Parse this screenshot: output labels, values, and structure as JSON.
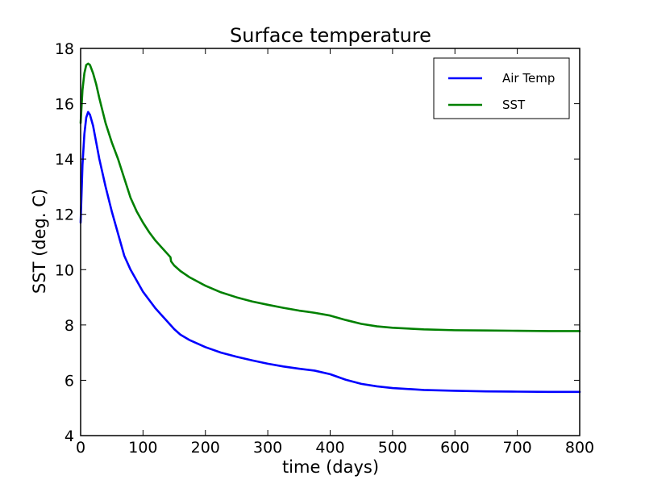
{
  "chart_data": {
    "type": "line",
    "title": "Surface temperature",
    "xlabel": "time (days)",
    "ylabel": "SST (deg. C)",
    "xlim": [
      0,
      800
    ],
    "ylim": [
      4,
      18
    ],
    "x_ticks": [
      0,
      100,
      200,
      300,
      400,
      500,
      600,
      700,
      800
    ],
    "y_ticks": [
      4,
      6,
      8,
      10,
      12,
      14,
      16,
      18
    ],
    "grid": false,
    "legend_position": "top-right",
    "series": [
      {
        "name": "Air Temp",
        "color": "#0000ff",
        "x": [
          0,
          3,
          6,
          9,
          12,
          15,
          20,
          25,
          30,
          40,
          50,
          60,
          70,
          80,
          90,
          100,
          110,
          120,
          130,
          140,
          150,
          160,
          175,
          200,
          225,
          250,
          275,
          300,
          325,
          350,
          375,
          400,
          425,
          450,
          475,
          500,
          550,
          600,
          650,
          700,
          750,
          800
        ],
        "y": [
          11.7,
          13.8,
          14.9,
          15.5,
          15.7,
          15.6,
          15.2,
          14.6,
          14.0,
          13.0,
          12.1,
          11.3,
          10.5,
          10.0,
          9.6,
          9.2,
          8.9,
          8.6,
          8.35,
          8.1,
          7.85,
          7.65,
          7.45,
          7.2,
          7.0,
          6.85,
          6.72,
          6.6,
          6.5,
          6.42,
          6.35,
          6.22,
          6.02,
          5.87,
          5.78,
          5.72,
          5.65,
          5.62,
          5.6,
          5.59,
          5.58,
          5.58
        ]
      },
      {
        "name": "SST",
        "color": "#008000",
        "x": [
          0,
          3,
          6,
          9,
          12,
          15,
          20,
          25,
          30,
          40,
          50,
          60,
          70,
          80,
          90,
          100,
          110,
          120,
          130,
          140,
          144,
          145,
          150,
          160,
          175,
          200,
          225,
          250,
          275,
          300,
          325,
          350,
          375,
          400,
          425,
          450,
          475,
          500,
          550,
          600,
          650,
          700,
          750,
          800
        ],
        "y": [
          15.3,
          16.5,
          17.1,
          17.4,
          17.45,
          17.4,
          17.1,
          16.7,
          16.2,
          15.3,
          14.6,
          14.0,
          13.3,
          12.6,
          12.1,
          11.7,
          11.35,
          11.05,
          10.8,
          10.55,
          10.45,
          10.3,
          10.15,
          9.95,
          9.72,
          9.42,
          9.18,
          9.0,
          8.85,
          8.73,
          8.62,
          8.52,
          8.44,
          8.34,
          8.18,
          8.04,
          7.95,
          7.9,
          7.84,
          7.81,
          7.8,
          7.79,
          7.78,
          7.78
        ]
      }
    ]
  }
}
